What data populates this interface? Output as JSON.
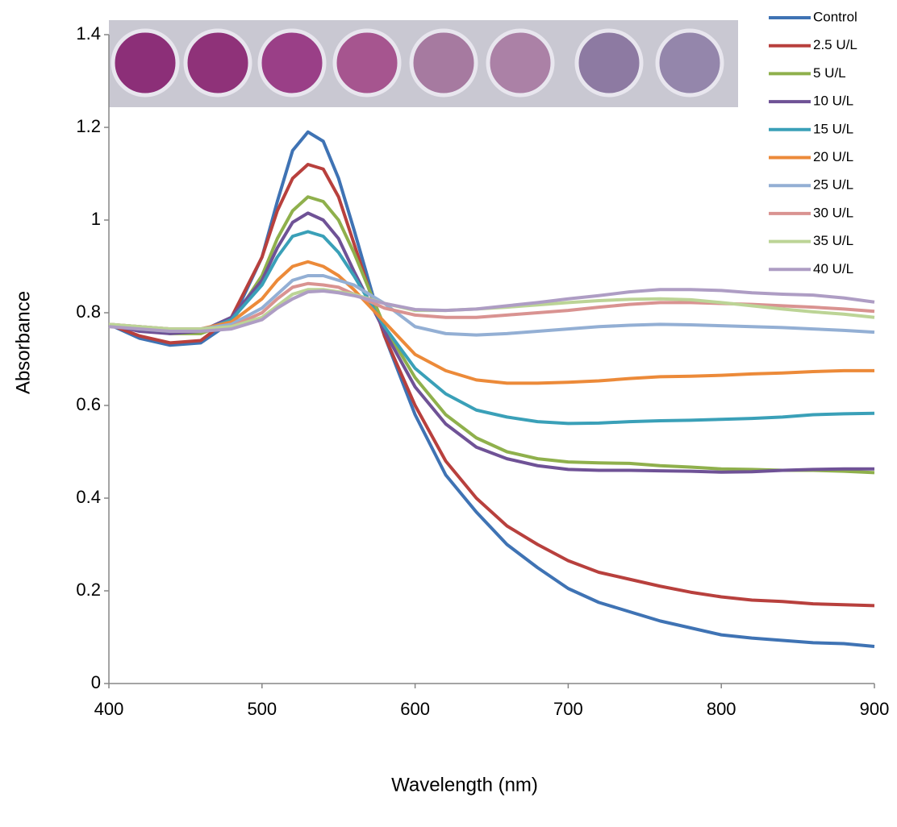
{
  "chart_data": {
    "type": "line",
    "x_label": "Wavelength (nm)",
    "y_label": "Absorbance",
    "x": [
      400,
      420,
      440,
      460,
      480,
      500,
      510,
      520,
      530,
      540,
      550,
      560,
      580,
      600,
      620,
      640,
      660,
      680,
      700,
      720,
      740,
      760,
      780,
      800,
      820,
      840,
      860,
      880,
      900
    ],
    "xlim": [
      400,
      900
    ],
    "xticks": [
      400,
      500,
      600,
      700,
      800,
      900
    ],
    "ylim": [
      0,
      1.4
    ],
    "yticks": [
      0,
      0.2,
      0.4,
      0.6,
      0.8,
      1,
      1.2,
      1.4
    ],
    "legend": "top-right",
    "series": [
      {
        "name": "Control",
        "color": "#3f73b4",
        "values": [
          0.775,
          0.745,
          0.73,
          0.735,
          0.78,
          0.92,
          1.04,
          1.15,
          1.19,
          1.17,
          1.09,
          0.98,
          0.75,
          0.58,
          0.45,
          0.37,
          0.3,
          0.25,
          0.205,
          0.175,
          0.155,
          0.135,
          0.12,
          0.105,
          0.098,
          0.093,
          0.088,
          0.086,
          0.08
        ]
      },
      {
        "name": "2.5 U/L",
        "color": "#b8403d",
        "values": [
          0.775,
          0.75,
          0.735,
          0.74,
          0.79,
          0.92,
          1.02,
          1.09,
          1.12,
          1.11,
          1.05,
          0.95,
          0.75,
          0.6,
          0.48,
          0.4,
          0.34,
          0.3,
          0.265,
          0.24,
          0.225,
          0.21,
          0.197,
          0.187,
          0.18,
          0.177,
          0.172,
          0.17,
          0.168
        ]
      },
      {
        "name": "5 U/L",
        "color": "#8fb04c",
        "values": [
          0.775,
          0.765,
          0.755,
          0.755,
          0.78,
          0.88,
          0.96,
          1.02,
          1.05,
          1.04,
          1.0,
          0.93,
          0.77,
          0.66,
          0.58,
          0.53,
          0.5,
          0.485,
          0.478,
          0.476,
          0.475,
          0.47,
          0.467,
          0.463,
          0.462,
          0.46,
          0.46,
          0.458,
          0.455
        ]
      },
      {
        "name": "10 U/L",
        "color": "#6f5296",
        "values": [
          0.775,
          0.76,
          0.755,
          0.76,
          0.79,
          0.87,
          0.94,
          0.995,
          1.015,
          1.0,
          0.96,
          0.89,
          0.76,
          0.64,
          0.56,
          0.51,
          0.485,
          0.47,
          0.462,
          0.46,
          0.46,
          0.459,
          0.458,
          0.456,
          0.457,
          0.46,
          0.462,
          0.463,
          0.463
        ]
      },
      {
        "name": "15 U/L",
        "color": "#3aa0b8",
        "values": [
          0.775,
          0.765,
          0.76,
          0.76,
          0.785,
          0.86,
          0.92,
          0.965,
          0.975,
          0.965,
          0.93,
          0.88,
          0.77,
          0.68,
          0.625,
          0.59,
          0.575,
          0.565,
          0.561,
          0.562,
          0.565,
          0.567,
          0.568,
          0.57,
          0.572,
          0.575,
          0.58,
          0.582,
          0.583
        ]
      },
      {
        "name": "20 U/L",
        "color": "#ec8a39",
        "values": [
          0.775,
          0.77,
          0.765,
          0.765,
          0.78,
          0.83,
          0.87,
          0.9,
          0.91,
          0.9,
          0.88,
          0.85,
          0.78,
          0.71,
          0.675,
          0.655,
          0.648,
          0.648,
          0.65,
          0.653,
          0.658,
          0.662,
          0.663,
          0.665,
          0.668,
          0.67,
          0.673,
          0.675,
          0.675
        ]
      },
      {
        "name": "25 U/L",
        "color": "#93afd4",
        "values": [
          0.775,
          0.77,
          0.765,
          0.765,
          0.775,
          0.81,
          0.84,
          0.87,
          0.88,
          0.88,
          0.87,
          0.86,
          0.82,
          0.77,
          0.755,
          0.752,
          0.755,
          0.76,
          0.765,
          0.77,
          0.773,
          0.775,
          0.774,
          0.772,
          0.77,
          0.768,
          0.765,
          0.762,
          0.758
        ]
      },
      {
        "name": "30 U/L",
        "color": "#d99391",
        "values": [
          0.775,
          0.77,
          0.765,
          0.765,
          0.77,
          0.8,
          0.83,
          0.855,
          0.863,
          0.86,
          0.855,
          0.84,
          0.81,
          0.795,
          0.79,
          0.79,
          0.795,
          0.8,
          0.805,
          0.812,
          0.818,
          0.822,
          0.822,
          0.82,
          0.818,
          0.815,
          0.812,
          0.808,
          0.803
        ]
      },
      {
        "name": "35 U/L",
        "color": "#bcd496",
        "values": [
          0.775,
          0.77,
          0.765,
          0.765,
          0.77,
          0.79,
          0.815,
          0.84,
          0.85,
          0.85,
          0.845,
          0.84,
          0.82,
          0.805,
          0.805,
          0.808,
          0.812,
          0.817,
          0.822,
          0.826,
          0.829,
          0.83,
          0.828,
          0.822,
          0.815,
          0.808,
          0.802,
          0.797,
          0.79
        ]
      },
      {
        "name": "40 U/L",
        "color": "#ae9dc4",
        "values": [
          0.77,
          0.765,
          0.76,
          0.76,
          0.765,
          0.785,
          0.81,
          0.83,
          0.845,
          0.847,
          0.843,
          0.837,
          0.82,
          0.807,
          0.805,
          0.808,
          0.815,
          0.822,
          0.83,
          0.837,
          0.845,
          0.85,
          0.85,
          0.848,
          0.843,
          0.84,
          0.838,
          0.832,
          0.823
        ]
      }
    ]
  }
}
